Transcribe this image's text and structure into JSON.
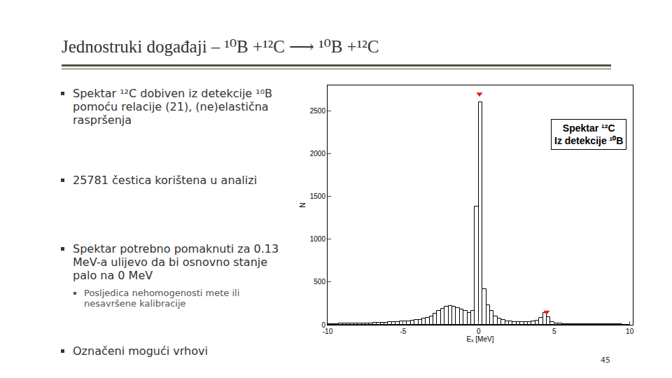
{
  "title": "Jednostruki događaji – ¹⁰B +¹²C ⟶ ¹⁰B +¹²C",
  "bullets": [
    {
      "text": "Spektar ¹²C dobiven iz detekcije ¹⁰B pomoću relacije (21), (ne)elastična raspršenja"
    },
    {
      "text": "25781 čestica korištena u analizi"
    },
    {
      "text": "Spektar potrebno pomaknuti za 0.13 MeV-a ulijevo da bi osnovno stanje palo na 0 MeV",
      "sub": [
        "Posljedica nehomogenosti mete ili nesavršene kalibracije"
      ]
    },
    {
      "text": "Označeni mogući vrhovi"
    }
  ],
  "page": "45",
  "chart_data": {
    "type": "histogram",
    "title": [
      "Spektar ¹²C",
      "Iz detekcije ¹⁰B"
    ],
    "x_label": "Eₓ [MeV]",
    "y_label": "N",
    "color": "#000000",
    "bins": [
      -10,
      -9.75,
      -9.5,
      -9.25,
      -9,
      -8.75,
      -8.5,
      -8.25,
      -8,
      -7.75,
      -7.5,
      -7.25,
      -7,
      -6.75,
      -6.5,
      -6.25,
      -6,
      -5.75,
      -5.5,
      -5.25,
      -5,
      -4.75,
      -4.5,
      -4.25,
      -4,
      -3.75,
      -3.5,
      -3.25,
      -3,
      -2.75,
      -2.5,
      -2.25,
      -2,
      -1.75,
      -1.5,
      -1.25,
      -1,
      -0.75,
      -0.5,
      -0.25,
      0,
      0.25,
      0.5,
      0.75,
      1,
      1.25,
      1.5,
      1.75,
      2,
      2.25,
      2.5,
      2.75,
      3,
      3.25,
      3.5,
      3.75,
      4,
      4.25,
      4.5,
      4.75,
      5,
      5.25,
      5.5,
      5.75,
      6,
      6.25,
      6.5,
      6.75,
      7,
      7.25,
      7.5,
      7.75,
      8,
      8.25,
      8.5,
      8.75,
      9,
      9.25,
      9.5,
      9.75,
      10
    ],
    "values": [
      10,
      12,
      12,
      14,
      14,
      15,
      15,
      16,
      18,
      18,
      20,
      20,
      22,
      24,
      25,
      28,
      30,
      32,
      35,
      38,
      40,
      45,
      50,
      55,
      60,
      70,
      85,
      100,
      130,
      160,
      190,
      210,
      220,
      210,
      195,
      180,
      160,
      140,
      160,
      1380,
      2600,
      420,
      230,
      160,
      100,
      70,
      55,
      45,
      40,
      35,
      35,
      30,
      30,
      35,
      40,
      50,
      80,
      140,
      90,
      35,
      20,
      15,
      12,
      10,
      10,
      9,
      8,
      8,
      8,
      7,
      7,
      6,
      6,
      6,
      5,
      5,
      5,
      5,
      4,
      4
    ],
    "markers": {
      "x": [
        0.05,
        4.5
      ],
      "y": [
        2700,
        150
      ],
      "color": "#e02020",
      "marker": "triangle-down"
    },
    "xlim": [
      -10,
      10.2
    ],
    "xticks": [
      -10,
      -5,
      0,
      5,
      10
    ],
    "ylim": [
      0,
      2800
    ],
    "yticks": [
      0,
      500,
      1000,
      1500,
      2000,
      2500
    ],
    "grid": false
  }
}
